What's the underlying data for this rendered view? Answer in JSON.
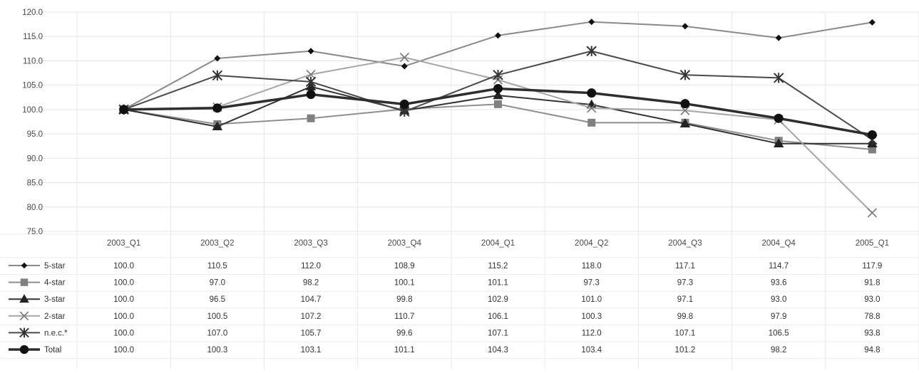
{
  "chart_data": {
    "type": "line",
    "categories": [
      "2003_Q1",
      "2003_Q2",
      "2003_Q3",
      "2003_Q4",
      "2004_Q1",
      "2004_Q2",
      "2004_Q3",
      "2004_Q4",
      "2005_Q1"
    ],
    "ylim": [
      75.0,
      120.0
    ],
    "yticks": [
      "75.0",
      "80.0",
      "85.0",
      "90.0",
      "95.0",
      "100.0",
      "105.0",
      "110.0",
      "115.0",
      "120.0"
    ],
    "grid": true,
    "legend": "data-table-left",
    "series": [
      {
        "name": "5-star",
        "marker": "diamond",
        "color": "#8a8a8a",
        "width": 2,
        "values": [
          100.0,
          110.5,
          112.0,
          108.9,
          115.2,
          118.0,
          117.1,
          114.7,
          117.9
        ],
        "labels": [
          "100.0",
          "110.5",
          "112.0",
          "108.9",
          "115.2",
          "118.0",
          "117.1",
          "114.7",
          "117.9"
        ]
      },
      {
        "name": "4-star",
        "marker": "square",
        "color": "#8f8f8f",
        "width": 2,
        "values": [
          100.0,
          97.0,
          98.2,
          100.1,
          101.1,
          97.3,
          97.3,
          93.6,
          91.8
        ],
        "labels": [
          "100.0",
          "97.0",
          "98.2",
          "100.1",
          "101.1",
          "97.3",
          "97.3",
          "93.6",
          "91.8"
        ]
      },
      {
        "name": "3-star",
        "marker": "triangle",
        "color": "#333333",
        "width": 2,
        "values": [
          100.0,
          96.5,
          104.7,
          99.8,
          102.9,
          101.0,
          97.1,
          93.0,
          93.0
        ],
        "labels": [
          "100.0",
          "96.5",
          "104.7",
          "99.8",
          "102.9",
          "101.0",
          "97.1",
          "93.0",
          "93.0"
        ]
      },
      {
        "name": "2-star",
        "marker": "x",
        "color": "#a6a6a6",
        "width": 2,
        "values": [
          100.0,
          100.5,
          107.2,
          110.7,
          106.1,
          100.3,
          99.8,
          97.9,
          78.8
        ],
        "labels": [
          "100.0",
          "100.5",
          "107.2",
          "110.7",
          "106.1",
          "100.3",
          "99.8",
          "97.9",
          "78.8"
        ]
      },
      {
        "name": "n.e.c.*",
        "marker": "star",
        "color": "#4a4a4a",
        "width": 2,
        "values": [
          100.0,
          107.0,
          105.7,
          99.6,
          107.1,
          112.0,
          107.1,
          106.5,
          93.8
        ],
        "labels": [
          "100.0",
          "107.0",
          "105.7",
          "99.6",
          "107.1",
          "112.0",
          "107.1",
          "106.5",
          "93.8"
        ]
      },
      {
        "name": "Total",
        "marker": "circle",
        "color": "#2e2e2e",
        "width": 3.5,
        "values": [
          100.0,
          100.3,
          103.1,
          101.1,
          104.3,
          103.4,
          101.2,
          98.2,
          94.8
        ],
        "labels": [
          "100.0",
          "100.3",
          "103.1",
          "101.1",
          "104.3",
          "103.4",
          "101.2",
          "98.2",
          "94.8"
        ]
      }
    ]
  }
}
